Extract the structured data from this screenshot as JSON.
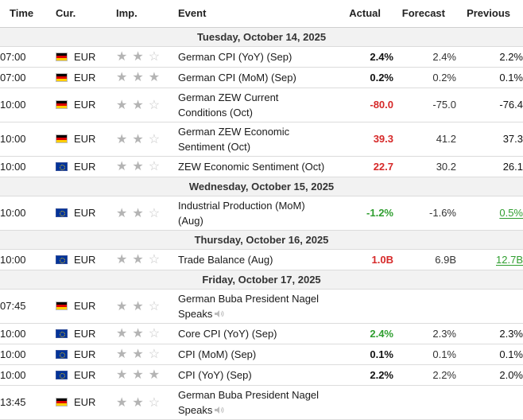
{
  "headers": {
    "time": "Time",
    "cur": "Cur.",
    "imp": "Imp.",
    "event": "Event",
    "actual": "Actual",
    "forecast": "Forecast",
    "previous": "Previous"
  },
  "colors": {
    "negative": "#d62929",
    "positive": "#2f9e2f",
    "date_row_bg": "#f2f2f2"
  },
  "rows": [
    {
      "type": "date",
      "label": "Tuesday, October 14, 2025"
    },
    {
      "type": "event",
      "time": "07:00",
      "flag": "de",
      "currency": "EUR",
      "importance": 2,
      "event": "German CPI (YoY) (Sep)",
      "actual": "2.4%",
      "actual_color": "black",
      "forecast": "2.4%",
      "previous": "2.2%",
      "previous_style": ""
    },
    {
      "type": "event",
      "time": "07:00",
      "flag": "de",
      "currency": "EUR",
      "importance": 3,
      "event": "German CPI (MoM) (Sep)",
      "actual": "0.2%",
      "actual_color": "black",
      "forecast": "0.2%",
      "previous": "0.1%",
      "previous_style": ""
    },
    {
      "type": "event",
      "time": "10:00",
      "flag": "de",
      "currency": "EUR",
      "importance": 2,
      "event": "German ZEW Current Conditions (Oct)",
      "actual": "-80.0",
      "actual_color": "red",
      "forecast": "-75.0",
      "previous": "-76.4",
      "previous_style": ""
    },
    {
      "type": "event",
      "time": "10:00",
      "flag": "de",
      "currency": "EUR",
      "importance": 2,
      "event": "German ZEW Economic Sentiment (Oct)",
      "actual": "39.3",
      "actual_color": "red",
      "forecast": "41.2",
      "previous": "37.3",
      "previous_style": ""
    },
    {
      "type": "event",
      "time": "10:00",
      "flag": "eu",
      "currency": "EUR",
      "importance": 2,
      "event": "ZEW Economic Sentiment (Oct)",
      "actual": "22.7",
      "actual_color": "red",
      "forecast": "30.2",
      "previous": "26.1",
      "previous_style": ""
    },
    {
      "type": "date",
      "label": "Wednesday, October 15, 2025"
    },
    {
      "type": "event",
      "time": "10:00",
      "flag": "eu",
      "currency": "EUR",
      "importance": 2,
      "event": "Industrial Production (MoM) (Aug)",
      "actual": "-1.2%",
      "actual_color": "green",
      "forecast": "-1.6%",
      "previous": "0.5%",
      "previous_style": "green"
    },
    {
      "type": "date",
      "label": "Thursday, October 16, 2025"
    },
    {
      "type": "event",
      "time": "10:00",
      "flag": "eu",
      "currency": "EUR",
      "importance": 2,
      "event": "Trade Balance (Aug)",
      "actual": "1.0B",
      "actual_color": "red",
      "forecast": "6.9B",
      "previous": "12.7B",
      "previous_style": "green"
    },
    {
      "type": "date",
      "label": "Friday, October 17, 2025"
    },
    {
      "type": "event",
      "time": "07:45",
      "flag": "de",
      "currency": "EUR",
      "importance": 2,
      "event": "German Buba President Nagel Speaks",
      "speaks": true,
      "actual": "",
      "actual_color": "black",
      "forecast": "",
      "previous": "",
      "previous_style": ""
    },
    {
      "type": "event",
      "time": "10:00",
      "flag": "eu",
      "currency": "EUR",
      "importance": 2,
      "event": "Core CPI (YoY) (Sep)",
      "actual": "2.4%",
      "actual_color": "green",
      "forecast": "2.3%",
      "previous": "2.3%",
      "previous_style": ""
    },
    {
      "type": "event",
      "time": "10:00",
      "flag": "eu",
      "currency": "EUR",
      "importance": 2,
      "event": "CPI (MoM) (Sep)",
      "actual": "0.1%",
      "actual_color": "black",
      "forecast": "0.1%",
      "previous": "0.1%",
      "previous_style": ""
    },
    {
      "type": "event",
      "time": "10:00",
      "flag": "eu",
      "currency": "EUR",
      "importance": 3,
      "event": "CPI (YoY) (Sep)",
      "actual": "2.2%",
      "actual_color": "black",
      "forecast": "2.2%",
      "previous": "2.0%",
      "previous_style": ""
    },
    {
      "type": "event",
      "time": "13:45",
      "flag": "de",
      "currency": "EUR",
      "importance": 2,
      "event": "German Buba President Nagel Speaks",
      "speaks": true,
      "actual": "",
      "actual_color": "black",
      "forecast": "",
      "previous": "",
      "previous_style": ""
    }
  ]
}
